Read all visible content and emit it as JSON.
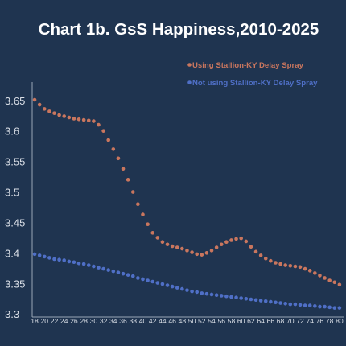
{
  "colors": {
    "background": "#1f3450",
    "text": "#ffffff",
    "axis_text": "#d9dee6",
    "series_orange": "#c9765e",
    "series_blue": "#4f6fc6"
  },
  "chart_data": {
    "type": "scatter",
    "title": "Chart 1b. GsS Happiness,2010-2025",
    "xlabel": "",
    "ylabel": "",
    "x_ticks": [
      18,
      20,
      22,
      24,
      26,
      28,
      30,
      32,
      34,
      36,
      38,
      40,
      42,
      44,
      46,
      48,
      50,
      52,
      54,
      56,
      58,
      60,
      62,
      64,
      66,
      68,
      70,
      72,
      74,
      76,
      78,
      80
    ],
    "y_ticks": [
      3.3,
      3.35,
      3.4,
      3.45,
      3.5,
      3.55,
      3.6,
      3.65
    ],
    "y_tick_labels": [
      "3.3",
      "3.35",
      "3.4",
      "3.45",
      "3.5",
      "3.55",
      "3.6",
      "3.65"
    ],
    "xlim": [
      17.5,
      81
    ],
    "ylim": [
      3.295,
      3.68
    ],
    "grid": false,
    "legend_position": "top-right",
    "series": [
      {
        "name": "Using Stallion-KY Delay Spray",
        "color": "#c9765e",
        "x": [
          18,
          19,
          20,
          21,
          22,
          23,
          24,
          25,
          26,
          27,
          28,
          29,
          30,
          31,
          32,
          33,
          34,
          35,
          36,
          37,
          38,
          39,
          40,
          41,
          42,
          43,
          44,
          45,
          46,
          47,
          48,
          49,
          50,
          51,
          52,
          53,
          54,
          55,
          56,
          57,
          58,
          59,
          60,
          61,
          62,
          63,
          64,
          65,
          66,
          67,
          68,
          69,
          70,
          71,
          72,
          73,
          74,
          75,
          76,
          77,
          78,
          79,
          80
        ],
        "y": [
          3.651,
          3.643,
          3.636,
          3.632,
          3.629,
          3.626,
          3.624,
          3.622,
          3.62,
          3.619,
          3.618,
          3.617,
          3.616,
          3.61,
          3.6,
          3.585,
          3.57,
          3.555,
          3.538,
          3.52,
          3.5,
          3.48,
          3.463,
          3.447,
          3.433,
          3.425,
          3.418,
          3.414,
          3.411,
          3.409,
          3.407,
          3.404,
          3.401,
          3.398,
          3.397,
          3.4,
          3.404,
          3.409,
          3.414,
          3.418,
          3.421,
          3.423,
          3.424,
          3.419,
          3.41,
          3.402,
          3.396,
          3.391,
          3.387,
          3.384,
          3.382,
          3.38,
          3.379,
          3.378,
          3.377,
          3.374,
          3.371,
          3.367,
          3.363,
          3.359,
          3.355,
          3.352,
          3.348
        ]
      },
      {
        "name": "Not using Stallion-KY Delay Spray",
        "color": "#4f6fc6",
        "x": [
          18,
          19,
          20,
          21,
          22,
          23,
          24,
          25,
          26,
          27,
          28,
          29,
          30,
          31,
          32,
          33,
          34,
          35,
          36,
          37,
          38,
          39,
          40,
          41,
          42,
          43,
          44,
          45,
          46,
          47,
          48,
          49,
          50,
          51,
          52,
          53,
          54,
          55,
          56,
          57,
          58,
          59,
          60,
          61,
          62,
          63,
          64,
          65,
          66,
          67,
          68,
          69,
          70,
          71,
          72,
          73,
          74,
          75,
          76,
          77,
          78,
          79,
          80
        ],
        "y": [
          3.398,
          3.396,
          3.394,
          3.392,
          3.39,
          3.389,
          3.388,
          3.386,
          3.385,
          3.383,
          3.382,
          3.38,
          3.378,
          3.376,
          3.374,
          3.372,
          3.37,
          3.368,
          3.366,
          3.364,
          3.362,
          3.359,
          3.357,
          3.355,
          3.353,
          3.351,
          3.349,
          3.347,
          3.345,
          3.343,
          3.341,
          3.339,
          3.337,
          3.336,
          3.334,
          3.333,
          3.332,
          3.331,
          3.33,
          3.329,
          3.328,
          3.327,
          3.326,
          3.325,
          3.324,
          3.323,
          3.322,
          3.321,
          3.32,
          3.319,
          3.318,
          3.317,
          3.316,
          3.316,
          3.315,
          3.314,
          3.314,
          3.313,
          3.312,
          3.312,
          3.311,
          3.31,
          3.31
        ]
      }
    ]
  }
}
